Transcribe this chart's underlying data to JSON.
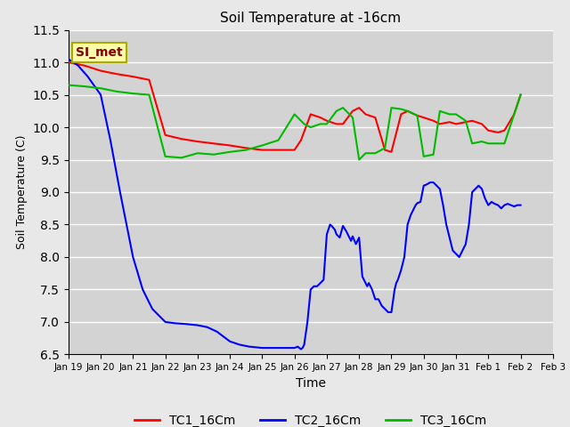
{
  "title": "Soil Temperature at -16cm",
  "xlabel": "Time",
  "ylabel": "Soil Temperature (C)",
  "ylim": [
    6.5,
    11.5
  ],
  "fig_facecolor": "#e8e8e8",
  "plot_facecolor": "#d3d3d3",
  "annotation_text": "SI_met",
  "annotation_bg": "#ffffaa",
  "annotation_border": "#aaaa00",
  "annotation_text_color": "#880000",
  "x_tick_labels": [
    "Jan 19",
    "Jan 20",
    "Jan 21",
    "Jan 22",
    "Jan 23",
    "Jan 24",
    "Jan 25",
    "Jan 26",
    "Jan 27",
    "Jan 28",
    "Jan 29",
    "Jan 30",
    "Jan 31",
    "Feb 1",
    "Feb 2",
    "Feb 3"
  ],
  "TC1_color": "#ff0000",
  "TC2_color": "#0000ff",
  "TC3_color": "#00bb00",
  "TC1_x": [
    0,
    0.5,
    1.0,
    1.5,
    2.0,
    2.5,
    3.0,
    3.5,
    4.0,
    4.5,
    5.0,
    5.5,
    6.0,
    6.5,
    7.0,
    7.2,
    7.5,
    7.8,
    8.0,
    8.3,
    8.5,
    8.8,
    9.0,
    9.2,
    9.5,
    9.8,
    10.0,
    10.3,
    10.5,
    10.8,
    11.0,
    11.3,
    11.5,
    11.8,
    12.0,
    12.3,
    12.5,
    12.8,
    13.0,
    13.3,
    13.5,
    13.8,
    14.0
  ],
  "TC1_y": [
    11.0,
    10.95,
    10.87,
    10.82,
    10.78,
    10.73,
    9.88,
    9.82,
    9.78,
    9.75,
    9.72,
    9.68,
    9.65,
    9.65,
    9.65,
    9.8,
    10.2,
    10.15,
    10.1,
    10.05,
    10.05,
    10.25,
    10.3,
    10.2,
    10.15,
    9.65,
    9.62,
    10.2,
    10.25,
    10.18,
    10.15,
    10.1,
    10.05,
    10.08,
    10.05,
    10.08,
    10.1,
    10.05,
    9.95,
    9.92,
    9.95,
    10.2,
    10.5
  ],
  "TC2_x": [
    0,
    0.3,
    0.6,
    1.0,
    1.3,
    1.6,
    2.0,
    2.3,
    2.6,
    3.0,
    3.3,
    3.6,
    4.0,
    4.3,
    4.6,
    5.0,
    5.3,
    5.6,
    6.0,
    6.3,
    6.6,
    7.0,
    7.1,
    7.15,
    7.2,
    7.25,
    7.3,
    7.4,
    7.5,
    7.6,
    7.7,
    7.8,
    7.9,
    8.0,
    8.1,
    8.15,
    8.2,
    8.25,
    8.3,
    8.4,
    8.5,
    8.6,
    8.65,
    8.7,
    8.75,
    8.8,
    8.9,
    9.0,
    9.1,
    9.15,
    9.2,
    9.25,
    9.3,
    9.35,
    9.4,
    9.5,
    9.6,
    9.7,
    9.8,
    9.9,
    10.0,
    10.1,
    10.15,
    10.2,
    10.3,
    10.4,
    10.5,
    10.6,
    10.65,
    10.7,
    10.75,
    10.8,
    10.9,
    11.0,
    11.1,
    11.2,
    11.3,
    11.4,
    11.5,
    11.6,
    11.7,
    11.8,
    11.9,
    12.0,
    12.1,
    12.2,
    12.3,
    12.4,
    12.5,
    12.6,
    12.7,
    12.8,
    12.9,
    13.0,
    13.1,
    13.2,
    13.3,
    13.4,
    13.5,
    13.6,
    13.7,
    13.8,
    13.9,
    14.0
  ],
  "TC2_y": [
    11.05,
    10.95,
    10.78,
    10.5,
    9.8,
    9.0,
    8.0,
    7.5,
    7.2,
    7.0,
    6.98,
    6.97,
    6.95,
    6.92,
    6.85,
    6.7,
    6.65,
    6.62,
    6.6,
    6.6,
    6.6,
    6.6,
    6.62,
    6.6,
    6.58,
    6.6,
    6.65,
    7.0,
    7.5,
    7.55,
    7.55,
    7.6,
    7.65,
    8.35,
    8.5,
    8.48,
    8.45,
    8.42,
    8.35,
    8.3,
    8.48,
    8.4,
    8.35,
    8.3,
    8.25,
    8.32,
    8.2,
    8.3,
    7.7,
    7.65,
    7.6,
    7.55,
    7.6,
    7.55,
    7.5,
    7.35,
    7.35,
    7.25,
    7.2,
    7.15,
    7.15,
    7.5,
    7.6,
    7.65,
    7.8,
    8.0,
    8.5,
    8.65,
    8.7,
    8.75,
    8.8,
    8.83,
    8.85,
    9.1,
    9.12,
    9.15,
    9.15,
    9.1,
    9.05,
    8.8,
    8.5,
    8.3,
    8.1,
    8.05,
    8.0,
    8.1,
    8.2,
    8.5,
    9.0,
    9.05,
    9.1,
    9.05,
    8.9,
    8.8,
    8.85,
    8.82,
    8.8,
    8.75,
    8.8,
    8.82,
    8.8,
    8.78,
    8.8,
    8.8
  ],
  "TC3_x": [
    0,
    0.5,
    1.0,
    1.5,
    2.0,
    2.5,
    3.0,
    3.5,
    4.0,
    4.5,
    5.0,
    5.5,
    6.0,
    6.5,
    7.0,
    7.3,
    7.5,
    7.8,
    8.0,
    8.3,
    8.5,
    8.8,
    9.0,
    9.2,
    9.5,
    9.8,
    10.0,
    10.3,
    10.5,
    10.8,
    11.0,
    11.3,
    11.5,
    11.8,
    12.0,
    12.3,
    12.5,
    12.8,
    13.0,
    13.3,
    13.5,
    13.8,
    14.0
  ],
  "TC3_y": [
    10.65,
    10.63,
    10.6,
    10.55,
    10.52,
    10.5,
    9.55,
    9.53,
    9.6,
    9.58,
    9.62,
    9.65,
    9.72,
    9.8,
    10.2,
    10.05,
    10.0,
    10.05,
    10.05,
    10.25,
    10.3,
    10.15,
    9.5,
    9.6,
    9.6,
    9.68,
    10.3,
    10.28,
    10.25,
    10.18,
    9.55,
    9.58,
    10.25,
    10.2,
    10.2,
    10.1,
    9.75,
    9.78,
    9.75,
    9.75,
    9.75,
    10.2,
    10.5
  ]
}
